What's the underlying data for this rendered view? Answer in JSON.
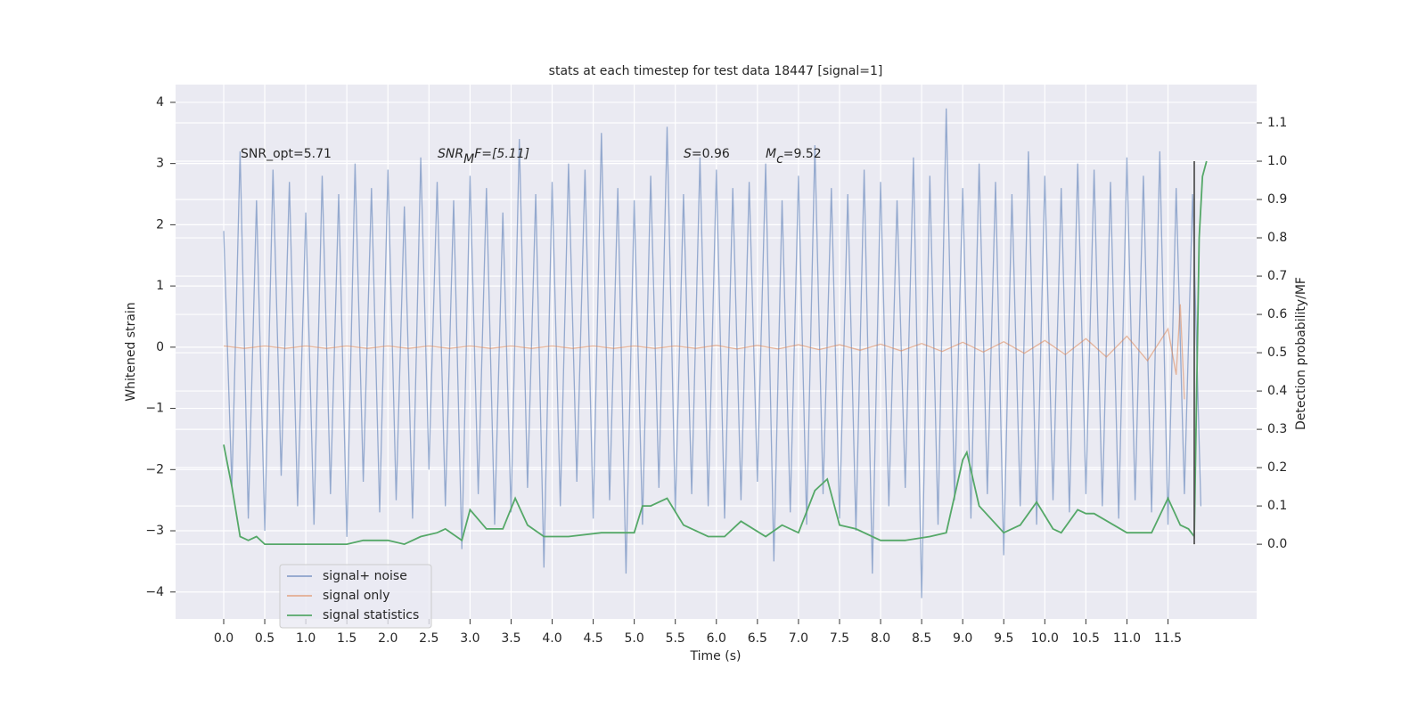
{
  "chart_data": {
    "type": "line",
    "title": "stats at each timestep for test data 18447 [signal=1]",
    "xlabel": "Time (s)",
    "ylabel": "Whitened strain",
    "y2label": "Detection probability/MF",
    "annotations": [
      {
        "main": "SNR_opt=5.71"
      },
      {
        "main": "SNR",
        "sub": "M",
        "tail": "F=[5.11]"
      },
      {
        "main": "S",
        "tail": "=0.96"
      },
      {
        "main": "M",
        "sub": "c",
        "tail": "=9.52"
      }
    ],
    "xlim": [
      -0.586,
      12.58
    ],
    "ylim": [
      -4.44,
      4.29
    ],
    "y2lim": [
      -0.195,
      1.2
    ],
    "xticks": [
      {
        "value": 0,
        "label": "0.0"
      },
      0.5,
      {
        "value": 1,
        "label": "1.0"
      },
      1.5,
      {
        "value": 2,
        "label": "2.0"
      },
      2.5,
      {
        "value": 3,
        "label": "3.0"
      },
      3.5,
      {
        "value": 4,
        "label": "4.0"
      },
      4.5,
      {
        "value": 5,
        "label": "5.0"
      },
      5.5,
      {
        "value": 6,
        "label": "6.0"
      },
      6.5,
      {
        "value": 7,
        "label": "7.0"
      },
      7.5,
      {
        "value": 8,
        "label": "8.0"
      },
      8.5,
      {
        "value": 9,
        "label": "9.0"
      },
      9.5,
      {
        "value": 10,
        "label": "10.0"
      },
      10.5,
      {
        "value": 11,
        "label": "11.0"
      },
      11.5
    ],
    "yticks": [
      {
        "value": -4,
        "label": "−4"
      },
      {
        "value": -3,
        "label": "−3"
      },
      {
        "value": -2,
        "label": "−2"
      },
      {
        "value": -1,
        "label": "−1"
      },
      0,
      1,
      2,
      3,
      4
    ],
    "y2ticks": [
      {
        "value": 0,
        "label": "0.0"
      },
      0.1,
      0.2,
      0.3,
      0.4,
      0.5,
      0.6,
      0.7,
      0.8,
      0.9,
      {
        "value": 1,
        "label": "1.0"
      },
      1.1
    ],
    "grid": true,
    "legend": "lower left",
    "vline": {
      "x": 11.82,
      "from": 0,
      "to": 1,
      "color": "#555555"
    },
    "series": [
      {
        "name": "signal+ noise",
        "color": "#4c72b0",
        "axis": "y",
        "x": [
          0,
          0.1,
          0.2,
          0.3,
          0.4,
          0.5,
          0.6,
          0.7,
          0.8,
          0.9,
          1,
          1.1,
          1.2,
          1.3,
          1.4,
          1.5,
          1.6,
          1.7,
          1.8,
          1.9,
          2,
          2.1,
          2.2,
          2.3,
          2.4,
          2.5,
          2.6,
          2.7,
          2.8,
          2.9,
          3,
          3.1,
          3.2,
          3.3,
          3.4,
          3.5,
          3.6,
          3.7,
          3.8,
          3.9,
          4,
          4.1,
          4.2,
          4.3,
          4.4,
          4.5,
          4.6,
          4.7,
          4.8,
          4.9,
          5,
          5.1,
          5.2,
          5.3,
          5.4,
          5.5,
          5.6,
          5.7,
          5.8,
          5.9,
          6,
          6.1,
          6.2,
          6.3,
          6.4,
          6.5,
          6.6,
          6.7,
          6.8,
          6.9,
          7,
          7.1,
          7.2,
          7.3,
          7.4,
          7.5,
          7.6,
          7.7,
          7.8,
          7.9,
          8,
          8.1,
          8.2,
          8.3,
          8.4,
          8.5,
          8.6,
          8.7,
          8.8,
          8.9,
          9,
          9.1,
          9.2,
          9.3,
          9.4,
          9.5,
          9.6,
          9.7,
          9.8,
          9.9,
          10,
          10.1,
          10.2,
          10.3,
          10.4,
          10.5,
          10.6,
          10.7,
          10.8,
          10.9,
          11,
          11.1,
          11.2,
          11.3,
          11.4,
          11.5,
          11.6,
          11.7,
          11.8,
          11.9
        ],
        "values": [
          1.9,
          -2.3,
          3.2,
          -2.8,
          2.4,
          -3.0,
          2.9,
          -2.1,
          2.7,
          -2.6,
          2.2,
          -2.9,
          2.8,
          -2.4,
          2.5,
          -3.1,
          3.0,
          -2.2,
          2.6,
          -2.7,
          2.9,
          -2.5,
          2.3,
          -2.8,
          3.1,
          -2.0,
          2.7,
          -2.6,
          2.4,
          -3.3,
          2.8,
          -2.4,
          2.6,
          -2.9,
          2.2,
          -2.7,
          3.4,
          -2.3,
          2.5,
          -3.6,
          2.7,
          -2.6,
          3.0,
          -2.2,
          2.9,
          -2.8,
          3.5,
          -2.5,
          2.6,
          -3.7,
          2.4,
          -2.9,
          2.8,
          -2.3,
          3.6,
          -2.7,
          2.5,
          -2.4,
          3.1,
          -2.6,
          2.9,
          -2.8,
          2.6,
          -2.5,
          2.7,
          -2.2,
          3.0,
          -3.5,
          2.4,
          -2.7,
          2.8,
          -2.9,
          3.3,
          -2.4,
          2.6,
          -2.8,
          2.5,
          -3.0,
          2.9,
          -3.7,
          2.7,
          -2.6,
          2.4,
          -2.3,
          3.1,
          -4.1,
          2.8,
          -2.9,
          3.9,
          -2.5,
          2.6,
          -2.8,
          3.0,
          -2.4,
          2.7,
          -3.4,
          2.5,
          -2.6,
          3.2,
          -2.9,
          2.8,
          -2.5,
          2.6,
          -2.7,
          3.0,
          -2.4,
          2.9,
          -2.6,
          2.7,
          -2.8,
          3.1,
          -2.5,
          2.8,
          -2.7,
          3.2,
          -2.9,
          2.6,
          -2.4,
          2.5,
          -2.6
        ]
      },
      {
        "name": "signal only",
        "color": "#dd8452",
        "axis": "y",
        "x": [
          0,
          0.25,
          0.5,
          0.75,
          1,
          1.25,
          1.5,
          1.75,
          2,
          2.25,
          2.5,
          2.75,
          3,
          3.25,
          3.5,
          3.75,
          4,
          4.25,
          4.5,
          4.75,
          5,
          5.25,
          5.5,
          5.75,
          6,
          6.25,
          6.5,
          6.75,
          7,
          7.25,
          7.5,
          7.75,
          8,
          8.25,
          8.5,
          8.75,
          9,
          9.25,
          9.5,
          9.75,
          10,
          10.25,
          10.5,
          10.75,
          11,
          11.25,
          11.5,
          11.6,
          11.65,
          11.7
        ],
        "values": [
          0.02,
          -0.02,
          0.02,
          -0.02,
          0.02,
          -0.02,
          0.02,
          -0.02,
          0.02,
          -0.02,
          0.02,
          -0.02,
          0.02,
          -0.02,
          0.02,
          -0.02,
          0.02,
          -0.02,
          0.02,
          -0.02,
          0.02,
          -0.02,
          0.02,
          -0.02,
          0.03,
          -0.03,
          0.03,
          -0.03,
          0.04,
          -0.04,
          0.04,
          -0.05,
          0.05,
          -0.06,
          0.06,
          -0.07,
          0.08,
          -0.08,
          0.09,
          -0.1,
          0.11,
          -0.12,
          0.14,
          -0.16,
          0.18,
          -0.22,
          0.3,
          -0.45,
          0.7,
          -0.85
        ]
      },
      {
        "name": "signal statistics",
        "color": "#55a868",
        "axis": "y2",
        "x": [
          0,
          0.1,
          0.2,
          0.3,
          0.4,
          0.5,
          0.7,
          1.0,
          1.3,
          1.5,
          1.7,
          2.0,
          2.2,
          2.4,
          2.6,
          2.7,
          2.9,
          3.0,
          3.2,
          3.4,
          3.55,
          3.7,
          3.9,
          4.2,
          4.6,
          4.8,
          5.0,
          5.1,
          5.2,
          5.4,
          5.6,
          5.9,
          6.1,
          6.3,
          6.6,
          6.8,
          7.0,
          7.2,
          7.35,
          7.5,
          7.7,
          8.0,
          8.3,
          8.6,
          8.8,
          9.0,
          9.05,
          9.2,
          9.5,
          9.7,
          9.9,
          10.1,
          10.2,
          10.4,
          10.5,
          10.6,
          11.0,
          11.3,
          11.5,
          11.65,
          11.75,
          11.82,
          11.88,
          11.92,
          11.97
        ],
        "values": [
          0.26,
          0.15,
          0.02,
          0.01,
          0.02,
          0.0,
          0.0,
          0.0,
          0.0,
          0.0,
          0.01,
          0.01,
          0.0,
          0.02,
          0.03,
          0.04,
          0.01,
          0.09,
          0.04,
          0.04,
          0.12,
          0.05,
          0.02,
          0.02,
          0.03,
          0.03,
          0.03,
          0.1,
          0.1,
          0.12,
          0.05,
          0.02,
          0.02,
          0.06,
          0.02,
          0.05,
          0.03,
          0.14,
          0.17,
          0.05,
          0.04,
          0.01,
          0.01,
          0.02,
          0.03,
          0.22,
          0.24,
          0.1,
          0.03,
          0.05,
          0.11,
          0.04,
          0.03,
          0.09,
          0.08,
          0.08,
          0.03,
          0.03,
          0.12,
          0.05,
          0.04,
          0.02,
          0.8,
          0.96,
          1.0
        ]
      }
    ]
  }
}
